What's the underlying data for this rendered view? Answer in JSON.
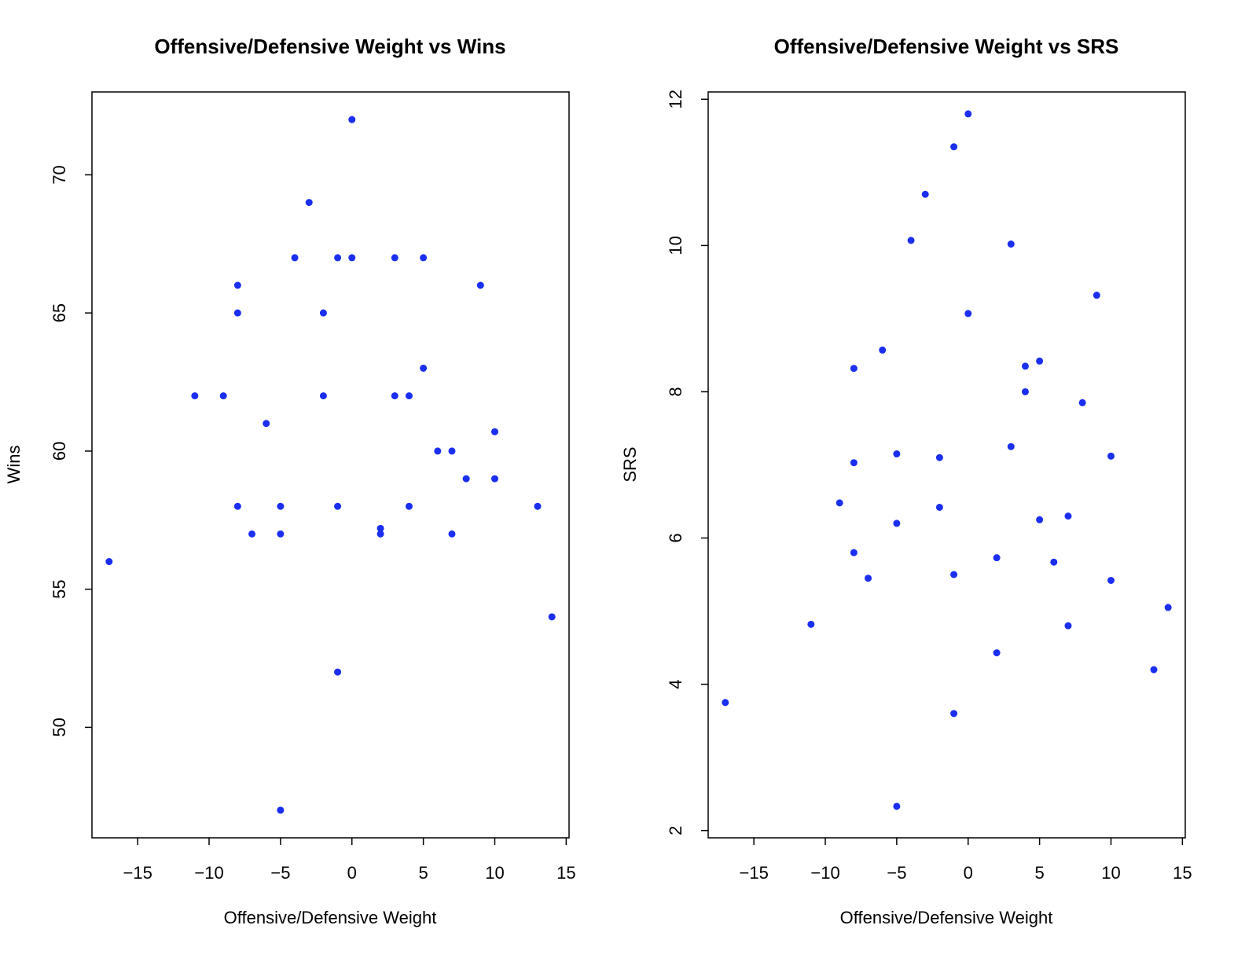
{
  "chart_data": [
    {
      "type": "scatter",
      "title": "Offensive/Defensive Weight vs Wins",
      "xlabel": "Offensive/Defensive Weight",
      "ylabel": "Wins",
      "xlim": [
        -18.2,
        15.2
      ],
      "ylim": [
        46.0,
        73.0
      ],
      "xticks": [
        -15,
        -10,
        -5,
        0,
        5,
        10,
        15
      ],
      "xtick_labels": [
        "−15",
        "−10",
        "−5",
        "0",
        "5",
        "10",
        "15"
      ],
      "yticks": [
        50,
        55,
        60,
        65,
        70
      ],
      "ytick_labels": [
        "50",
        "55",
        "60",
        "65",
        "70"
      ],
      "grid": false,
      "point_color": "#1a2ff0",
      "points": [
        {
          "x": -17,
          "y": 56
        },
        {
          "x": -11,
          "y": 62
        },
        {
          "x": -9,
          "y": 62
        },
        {
          "x": -8,
          "y": 66
        },
        {
          "x": -8,
          "y": 65
        },
        {
          "x": -8,
          "y": 58
        },
        {
          "x": -7,
          "y": 57
        },
        {
          "x": -6,
          "y": 61
        },
        {
          "x": -5,
          "y": 58
        },
        {
          "x": -5,
          "y": 57
        },
        {
          "x": -5,
          "y": 47
        },
        {
          "x": -4,
          "y": 67
        },
        {
          "x": -3,
          "y": 69
        },
        {
          "x": -2,
          "y": 65
        },
        {
          "x": -2,
          "y": 62
        },
        {
          "x": -1,
          "y": 67
        },
        {
          "x": -1,
          "y": 58
        },
        {
          "x": -1,
          "y": 52
        },
        {
          "x": 0,
          "y": 72
        },
        {
          "x": 0,
          "y": 67
        },
        {
          "x": 2,
          "y": 57.2
        },
        {
          "x": 2,
          "y": 57
        },
        {
          "x": 3,
          "y": 67
        },
        {
          "x": 3,
          "y": 62
        },
        {
          "x": 4,
          "y": 62
        },
        {
          "x": 4,
          "y": 58
        },
        {
          "x": 5,
          "y": 67
        },
        {
          "x": 5,
          "y": 63
        },
        {
          "x": 6,
          "y": 60
        },
        {
          "x": 7,
          "y": 60
        },
        {
          "x": 7,
          "y": 57
        },
        {
          "x": 8,
          "y": 59
        },
        {
          "x": 9,
          "y": 66
        },
        {
          "x": 10,
          "y": 60.7
        },
        {
          "x": 10,
          "y": 59
        },
        {
          "x": 13,
          "y": 58
        },
        {
          "x": 14,
          "y": 54
        }
      ]
    },
    {
      "type": "scatter",
      "title": "Offensive/Defensive Weight vs SRS",
      "xlabel": "Offensive/Defensive Weight",
      "ylabel": "SRS",
      "xlim": [
        -18.2,
        15.2
      ],
      "ylim": [
        1.9,
        12.1
      ],
      "xticks": [
        -15,
        -10,
        -5,
        0,
        5,
        10,
        15
      ],
      "xtick_labels": [
        "−15",
        "−10",
        "−5",
        "0",
        "5",
        "10",
        "15"
      ],
      "yticks": [
        2,
        4,
        6,
        8,
        10,
        12
      ],
      "ytick_labels": [
        "2",
        "4",
        "6",
        "8",
        "10",
        "12"
      ],
      "grid": false,
      "point_color": "#1a2ff0",
      "points": [
        {
          "x": -17,
          "y": 3.75
        },
        {
          "x": -11,
          "y": 4.82
        },
        {
          "x": -9,
          "y": 6.48
        },
        {
          "x": -8,
          "y": 8.32
        },
        {
          "x": -8,
          "y": 7.03
        },
        {
          "x": -8,
          "y": 5.8
        },
        {
          "x": -7,
          "y": 5.45
        },
        {
          "x": -6,
          "y": 8.57
        },
        {
          "x": -5,
          "y": 7.15
        },
        {
          "x": -5,
          "y": 6.2
        },
        {
          "x": -5,
          "y": 2.33
        },
        {
          "x": -4,
          "y": 10.07
        },
        {
          "x": -3,
          "y": 10.7
        },
        {
          "x": -2,
          "y": 7.1
        },
        {
          "x": -2,
          "y": 6.42
        },
        {
          "x": -1,
          "y": 11.35
        },
        {
          "x": -1,
          "y": 5.5
        },
        {
          "x": -1,
          "y": 3.6
        },
        {
          "x": 0,
          "y": 11.8
        },
        {
          "x": 0,
          "y": 9.07
        },
        {
          "x": 2,
          "y": 5.73
        },
        {
          "x": 2,
          "y": 4.43
        },
        {
          "x": 3,
          "y": 10.02
        },
        {
          "x": 3,
          "y": 7.25
        },
        {
          "x": 4,
          "y": 8.35
        },
        {
          "x": 4,
          "y": 8.0
        },
        {
          "x": 5,
          "y": 8.42
        },
        {
          "x": 5,
          "y": 6.25
        },
        {
          "x": 6,
          "y": 5.67
        },
        {
          "x": 7,
          "y": 6.3
        },
        {
          "x": 7,
          "y": 4.8
        },
        {
          "x": 8,
          "y": 7.85
        },
        {
          "x": 9,
          "y": 9.32
        },
        {
          "x": 10,
          "y": 7.12
        },
        {
          "x": 10,
          "y": 5.42
        },
        {
          "x": 13,
          "y": 4.2
        },
        {
          "x": 14,
          "y": 5.05
        }
      ]
    }
  ]
}
